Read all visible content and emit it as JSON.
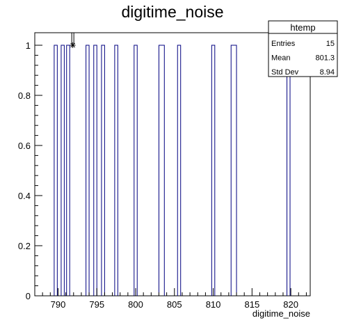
{
  "chart_data": {
    "type": "bar",
    "title": "digitime_noise",
    "xlabel": "digitime_noise",
    "ylabel": "",
    "xlim": [
      787,
      822.5
    ],
    "ylim": [
      0,
      1.05
    ],
    "x_ticks": [
      {
        "value": 790,
        "label": "790"
      },
      {
        "value": 795,
        "label": "795"
      },
      {
        "value": 800,
        "label": "800"
      },
      {
        "value": 805,
        "label": "805"
      },
      {
        "value": 810,
        "label": "810"
      },
      {
        "value": 815,
        "label": "815"
      },
      {
        "value": 820,
        "label": "820"
      }
    ],
    "y_ticks": [
      {
        "value": 0,
        "label": "0"
      },
      {
        "value": 0.2,
        "label": "0.2"
      },
      {
        "value": 0.4,
        "label": "0.4"
      },
      {
        "value": 0.6,
        "label": "0.6"
      },
      {
        "value": 0.8,
        "label": "0.8"
      },
      {
        "value": 1,
        "label": "1"
      }
    ],
    "bins": [
      {
        "x0": 789.5,
        "x1": 789.9,
        "value": 1
      },
      {
        "x0": 790.4,
        "x1": 790.8,
        "value": 1
      },
      {
        "x0": 791.1,
        "x1": 791.5,
        "value": 1
      },
      {
        "x0": 793.6,
        "x1": 794.0,
        "value": 1
      },
      {
        "x0": 794.6,
        "x1": 795.0,
        "value": 1
      },
      {
        "x0": 795.6,
        "x1": 796.0,
        "value": 1
      },
      {
        "x0": 797.3,
        "x1": 797.7,
        "value": 1
      },
      {
        "x0": 799.8,
        "x1": 800.2,
        "value": 1
      },
      {
        "x0": 803.0,
        "x1": 803.7,
        "value": 1
      },
      {
        "x0": 805.4,
        "x1": 805.8,
        "value": 1
      },
      {
        "x0": 809.8,
        "x1": 810.2,
        "value": 1
      },
      {
        "x0": 812.3,
        "x1": 813.0,
        "value": 1
      },
      {
        "x0": 819.5,
        "x1": 819.9,
        "value": 1
      }
    ],
    "marker": {
      "x": 791.9,
      "y": 1
    },
    "colors": {
      "line": "#000080",
      "axis": "#000000"
    },
    "stats_box": {
      "title": "htemp",
      "rows": [
        {
          "label": "Entries",
          "value": "15"
        },
        {
          "label": "Mean",
          "value": "801.3"
        },
        {
          "label": "Std Dev",
          "value": "8.94"
        }
      ]
    }
  }
}
